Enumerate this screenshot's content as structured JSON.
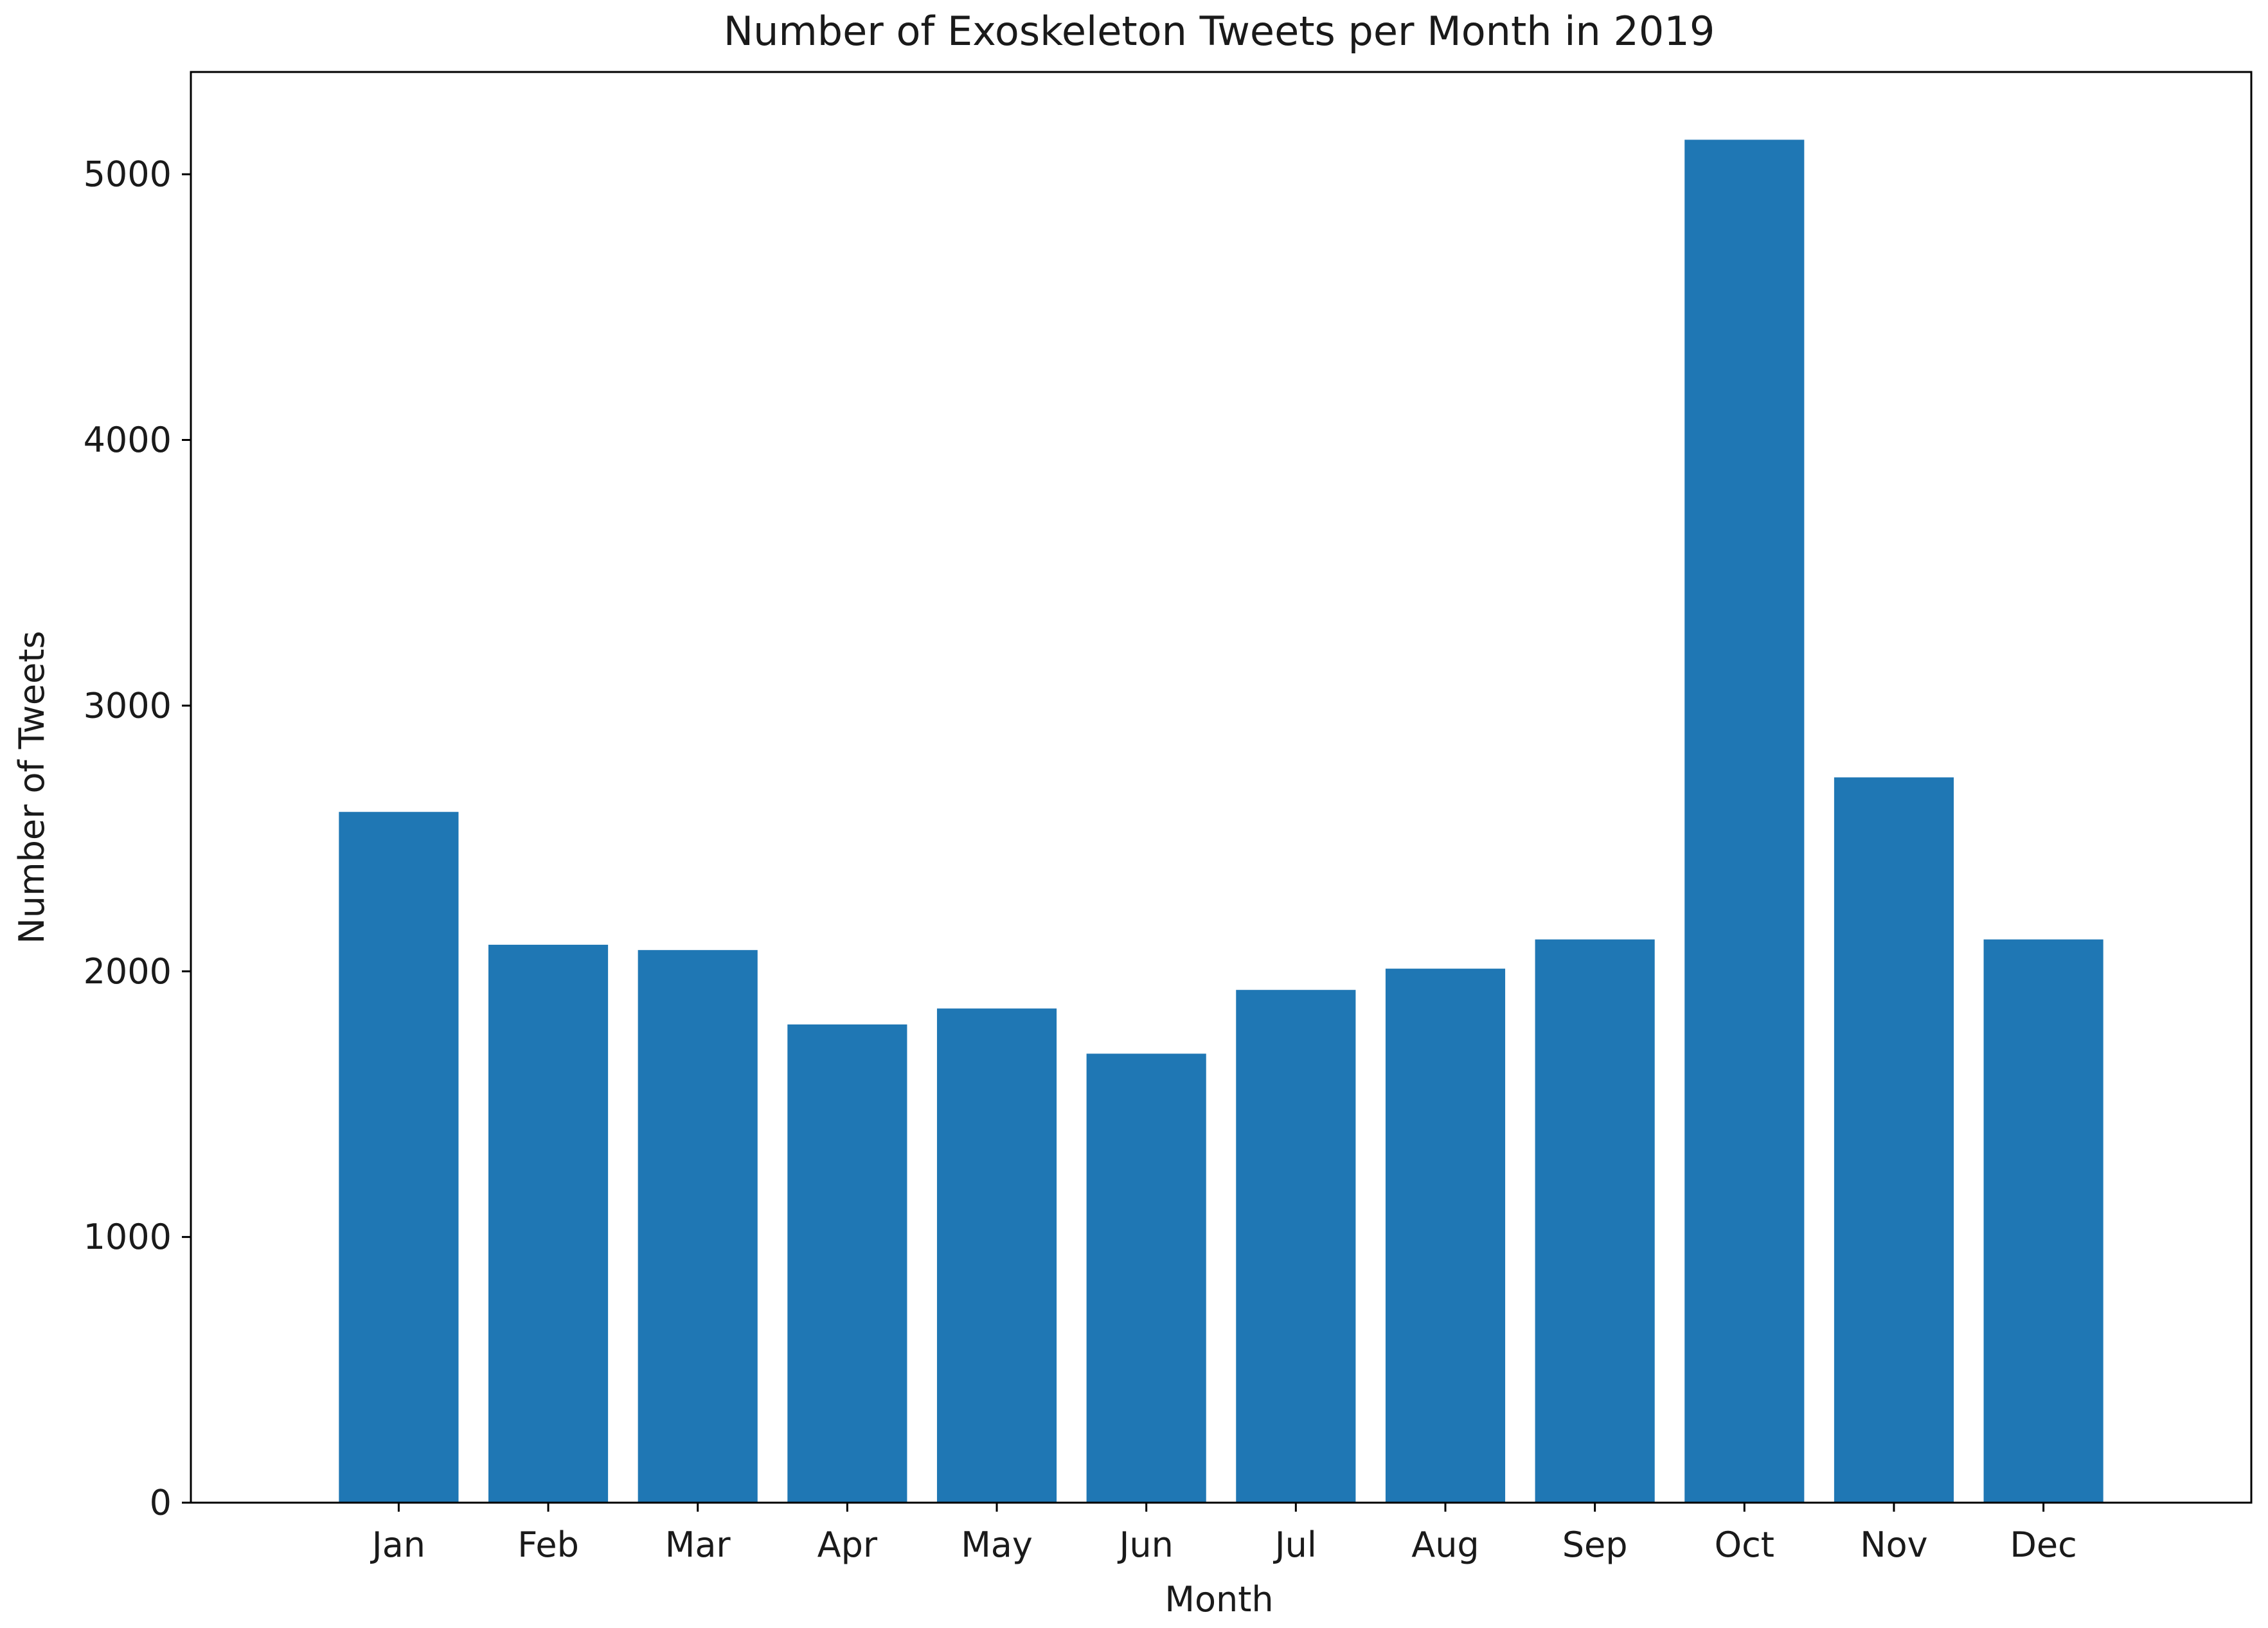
{
  "chart_data": {
    "type": "bar",
    "title": "Number of Exoskeleton Tweets per Month in 2019",
    "xlabel": "Month",
    "ylabel": "Number of Tweets",
    "categories": [
      "Jan",
      "Feb",
      "Mar",
      "Apr",
      "May",
      "Jun",
      "Jul",
      "Aug",
      "Sep",
      "Oct",
      "Nov",
      "Dec"
    ],
    "values": [
      2600,
      2100,
      2080,
      1800,
      1860,
      1690,
      1930,
      2010,
      2120,
      5130,
      2730,
      2120
    ],
    "ylim": [
      0,
      5385
    ],
    "yticks": [
      0,
      1000,
      2000,
      3000,
      4000,
      5000
    ],
    "ytick_labels": [
      "0",
      "1000",
      "2000",
      "3000",
      "4000",
      "5000"
    ],
    "grid": false,
    "legend": "none",
    "bar_color": "#1f77b4"
  }
}
